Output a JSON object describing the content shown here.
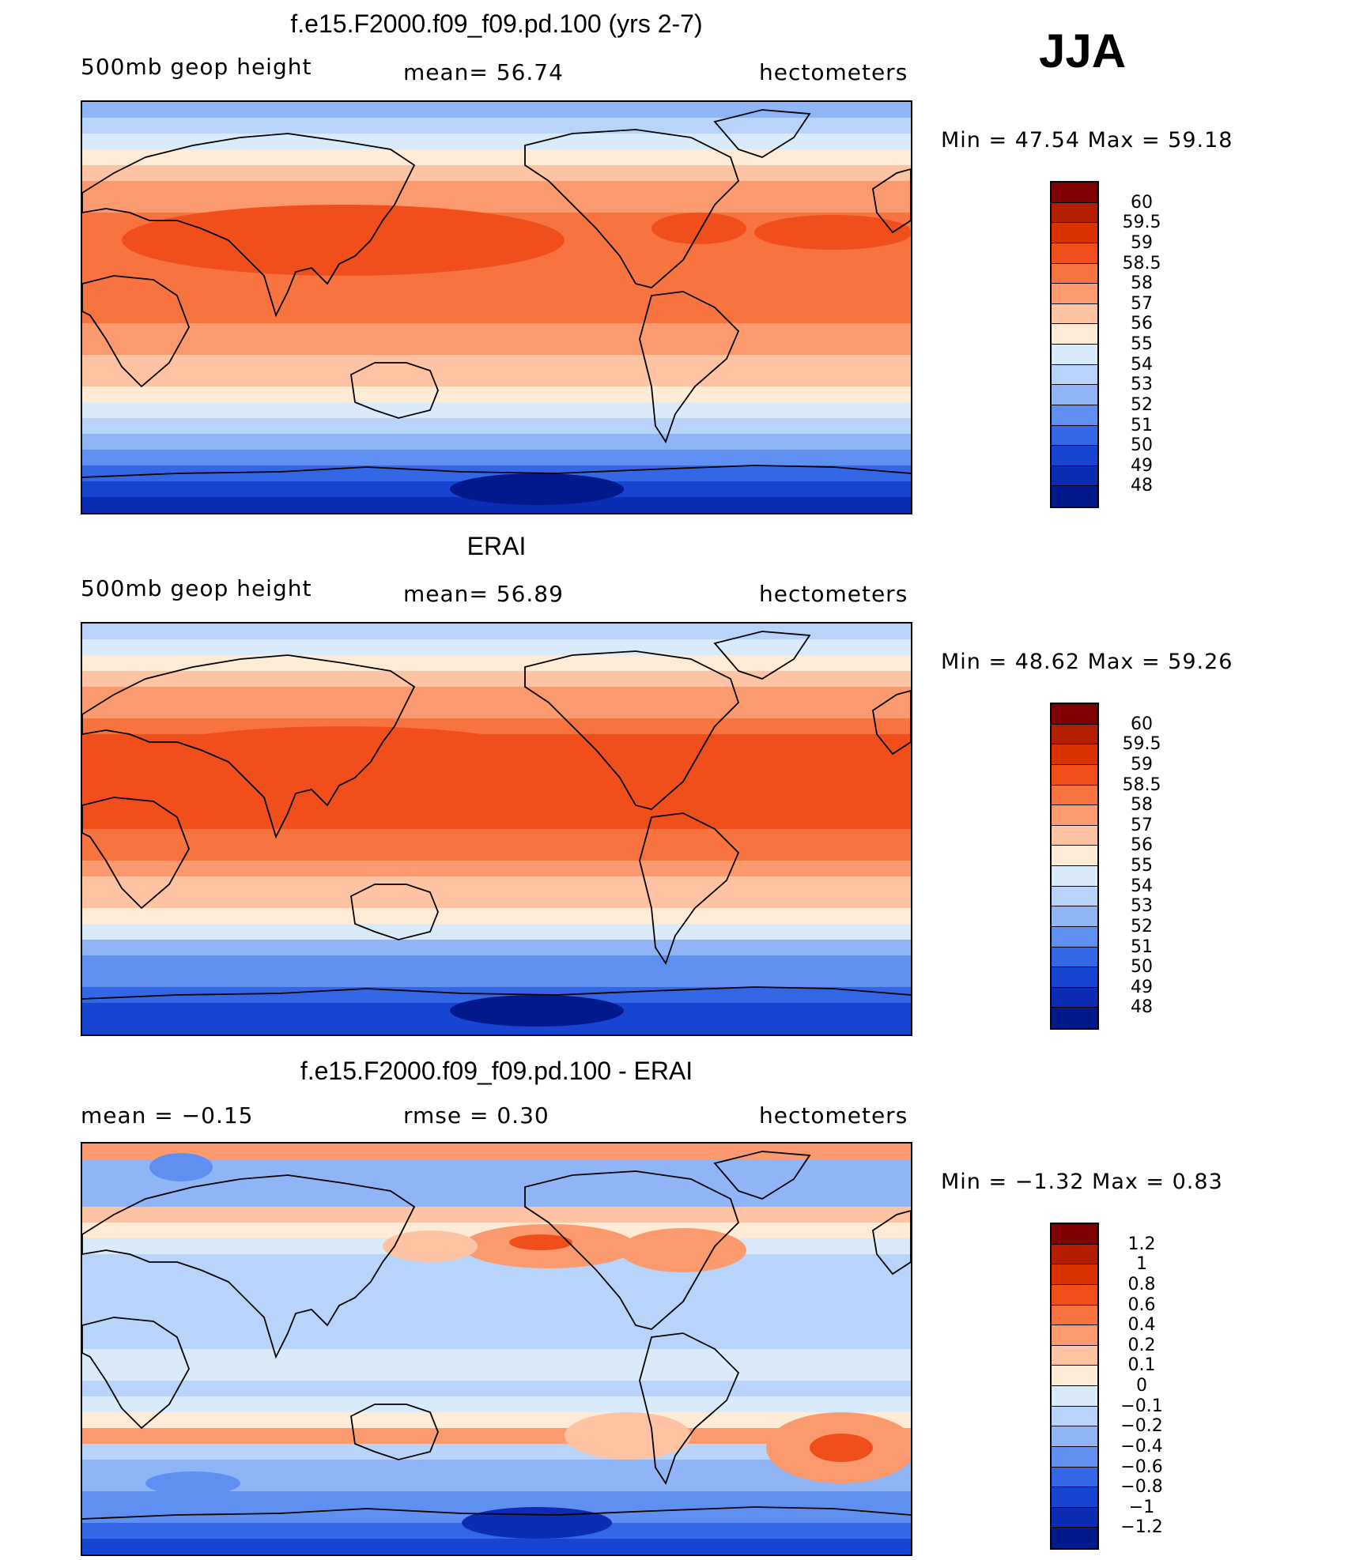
{
  "season": "JJA",
  "chart_data": [
    {
      "type": "heatmap",
      "title": "f.e15.F2000.f09_f09.pd.100 (yrs 2-7)",
      "variable": "500mb  geop  height",
      "mean_label": "mean=   56.74",
      "units": "hectometers",
      "min_max": "Min  =    47.54  Max  =    59.18",
      "map": "global lat-lon, Pacific-centered",
      "levels": [
        "60",
        "59.5",
        "59",
        "58.5",
        "58",
        "57",
        "56",
        "55",
        "54",
        "53",
        "52",
        "51",
        "50",
        "49",
        "48"
      ],
      "colors": [
        "#7f0000",
        "#b31d00",
        "#d93300",
        "#f04e1a",
        "#f7733f",
        "#fb9a6e",
        "#fdc3a3",
        "#feebd6",
        "#d9ebfb",
        "#b8d4fa",
        "#8fb5f7",
        "#5f8ff0",
        "#3367e6",
        "#1744d1",
        "#0b2cb3",
        "#001a8c"
      ],
      "zonal_profile": [
        52.5,
        53.2,
        54.2,
        55.3,
        56.2,
        57.0,
        57.6,
        58.0,
        58.3,
        58.4,
        58.4,
        58.4,
        58.3,
        58.1,
        57.8,
        57.4,
        56.8,
        56.0,
        55.0,
        54.0,
        53.0,
        52.0,
        51.0,
        50.0,
        49.0,
        48.3
      ]
    },
    {
      "type": "heatmap",
      "title": "ERAI",
      "variable": "500mb  geop  height",
      "mean_label": "mean=   56.89",
      "units": "hectometers",
      "min_max": "Min  =    48.62  Max  =    59.26",
      "map": "global lat-lon, Pacific-centered",
      "levels": [
        "60",
        "59.5",
        "59",
        "58.5",
        "58",
        "57",
        "56",
        "55",
        "54",
        "53",
        "52",
        "51",
        "50",
        "49",
        "48"
      ],
      "colors": [
        "#7f0000",
        "#b31d00",
        "#d93300",
        "#f04e1a",
        "#f7733f",
        "#fb9a6e",
        "#fdc3a3",
        "#feebd6",
        "#d9ebfb",
        "#b8d4fa",
        "#8fb5f7",
        "#5f8ff0",
        "#3367e6",
        "#1744d1",
        "#0b2cb3",
        "#001a8c"
      ],
      "zonal_profile": [
        53.0,
        54.2,
        55.3,
        56.2,
        57.0,
        57.7,
        58.2,
        58.5,
        58.6,
        58.7,
        58.7,
        58.7,
        58.6,
        58.4,
        58.1,
        57.6,
        56.9,
        56.0,
        55.0,
        54.0,
        52.8,
        51.8,
        51.0,
        50.3,
        49.7,
        49.2
      ]
    },
    {
      "type": "heatmap",
      "title": "f.e15.F2000.f09_f09.pd.100 - ERAI",
      "mean_label": "mean  =    −0.15",
      "rmse_label": "rmse  =     0.30",
      "units": "hectometers",
      "min_max": "Min  =    −1.32  Max  =     0.83",
      "map": "global lat-lon, Pacific-centered",
      "levels": [
        "1.2",
        "1",
        "0.8",
        "0.6",
        "0.4",
        "0.2",
        "0.1",
        "0",
        "−0.1",
        "−0.2",
        "−0.4",
        "−0.6",
        "−0.8",
        "−1",
        "−1.2"
      ],
      "colors": [
        "#7f0000",
        "#b31d00",
        "#d93300",
        "#f04e1a",
        "#f7733f",
        "#fb9a6e",
        "#fdc3a3",
        "#feebd6",
        "#d9ebfb",
        "#b8d4fa",
        "#8fb5f7",
        "#5f8ff0",
        "#3367e6",
        "#1744d1",
        "#0b2cb3",
        "#001a8c"
      ],
      "zonal_profile": [
        0.3,
        -0.3,
        -0.4,
        -0.3,
        0.1,
        0.0,
        -0.1,
        -0.2,
        -0.2,
        -0.2,
        -0.2,
        -0.2,
        -0.2,
        -0.1,
        -0.1,
        -0.2,
        -0.1,
        0.0,
        0.2,
        -0.2,
        -0.4,
        -0.3,
        -0.6,
        -0.6,
        -0.8,
        -0.9
      ]
    }
  ]
}
